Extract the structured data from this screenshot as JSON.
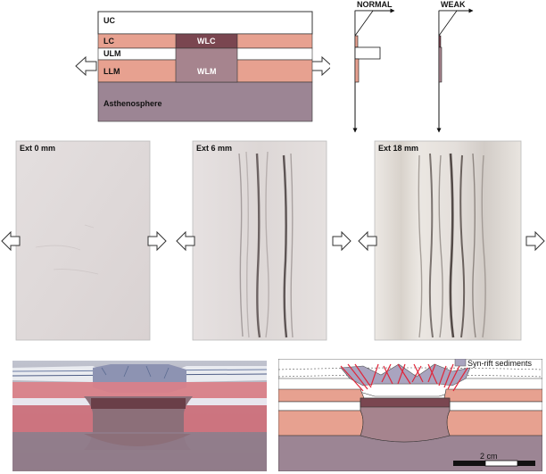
{
  "model_section": {
    "layers": {
      "uc": "UC",
      "lc": "LC",
      "ulm": "ULM",
      "llm": "LLM",
      "asthenosphere": "Asthenosphere",
      "wlc": "WLC",
      "wlm": "WLM"
    }
  },
  "strength_profiles": {
    "normal_title": "NORMAL",
    "weak_title": "WEAK"
  },
  "experiments": [
    {
      "label": "Ext 0 mm"
    },
    {
      "label": "Ext 6 mm"
    },
    {
      "label": "Ext 18 mm"
    }
  ],
  "cross_section": {
    "legend_label": "Syn-rift sediments",
    "scale_label": "2 cm"
  },
  "colors": {
    "upper_crust": "#ffffff",
    "lower_crust": "#e7a190",
    "upper_mantle": "#ffffff",
    "lower_mantle": "#e7a190",
    "weak_zone": "#a6848e",
    "weak_lower_crust": "#7a4650",
    "asthenosphere": "#9c8594",
    "syn_rift": "#a9a4bf",
    "fault": "#e0263a"
  }
}
